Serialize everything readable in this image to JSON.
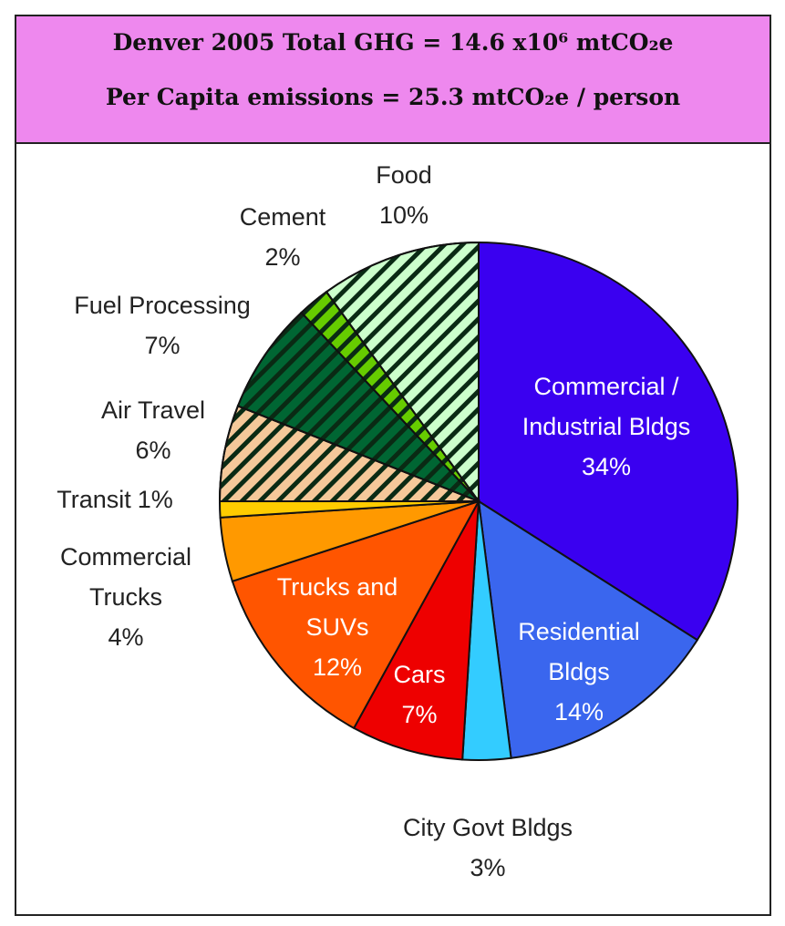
{
  "chart_data": {
    "type": "pie",
    "title": "Denver 2005 Total GHG = 14.6 x10⁶ mtCO₂e",
    "subtitle": "Per Capita emissions = 25.3 mtCO₂e / person",
    "categories": [
      "Commercial / Industrial Bldgs",
      "Residential Bldgs",
      "City Govt Bldgs",
      "Cars",
      "Trucks and SUVs",
      "Commercial Trucks",
      "Transit",
      "Air Travel",
      "Fuel Processing",
      "Cement",
      "Food"
    ],
    "values": [
      34,
      14,
      3,
      7,
      12,
      4,
      1,
      6,
      7,
      2,
      10
    ],
    "value_labels": [
      "34%",
      "14%",
      "3%",
      "7%",
      "12%",
      "4%",
      "1%",
      "6%",
      "7%",
      "2%",
      "10%"
    ],
    "colors": [
      "#3a00f0",
      "#3a66ee",
      "#33ccff",
      "#ee0000",
      "#ff5500",
      "#ff9900",
      "#ffcc00",
      "#f5c89a",
      "#006633",
      "#66cc00",
      "#ccffcc"
    ],
    "hatched": [
      false,
      false,
      false,
      false,
      false,
      false,
      false,
      true,
      true,
      true,
      true
    ]
  }
}
